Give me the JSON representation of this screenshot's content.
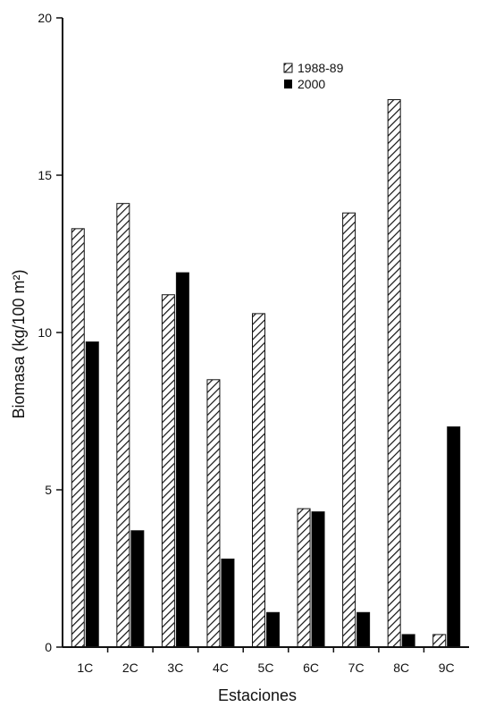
{
  "chart_data": {
    "type": "bar",
    "title": "",
    "xlabel": "Estaciones",
    "ylabel": "Biomasa (kg/100 m²)",
    "categories": [
      "1C",
      "2C",
      "3C",
      "4C",
      "5C",
      "6C",
      "7C",
      "8C",
      "9C"
    ],
    "series": [
      {
        "name": "1988-89",
        "pattern": "hatched",
        "color": "#ffffff",
        "values": [
          13.3,
          14.1,
          11.2,
          8.5,
          10.6,
          4.4,
          13.8,
          17.4,
          0.4
        ]
      },
      {
        "name": "2000",
        "pattern": "solid",
        "color": "#000000",
        "values": [
          9.7,
          3.7,
          11.9,
          2.8,
          1.1,
          4.3,
          1.1,
          0.4,
          7.0
        ]
      }
    ],
    "ylim": [
      0,
      20
    ],
    "yticks": [
      0,
      5,
      10,
      15,
      20
    ],
    "grid": false,
    "legend": "top-right"
  }
}
